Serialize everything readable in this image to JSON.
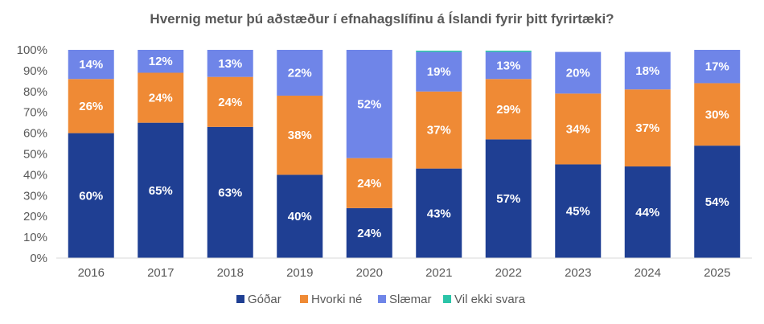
{
  "chart_data": {
    "type": "bar",
    "stacked": true,
    "title": "Hvernig metur þú aðstæður í efnahagslífinu á Íslandi fyrir þitt fyrirtæki?",
    "xlabel": "",
    "ylabel": "",
    "ylim": [
      0,
      100
    ],
    "yticks": [
      "0%",
      "10%",
      "20%",
      "30%",
      "40%",
      "50%",
      "60%",
      "70%",
      "80%",
      "90%",
      "100%"
    ],
    "categories": [
      "2016",
      "2017",
      "2018",
      "2019",
      "2020",
      "2021",
      "2022",
      "2023",
      "2024",
      "2025"
    ],
    "series": [
      {
        "name": "Góðar",
        "color": "#1f3f93",
        "values": [
          60,
          65,
          63,
          40,
          24,
          43,
          57,
          45,
          44,
          54
        ],
        "labels": [
          "60%",
          "65%",
          "63%",
          "40%",
          "24%",
          "43%",
          "57%",
          "45%",
          "44%",
          "54%"
        ]
      },
      {
        "name": "Hvorki né",
        "color": "#ef8a35",
        "values": [
          26,
          24,
          24,
          38,
          24,
          37,
          29,
          34,
          37,
          30
        ],
        "labels": [
          "26%",
          "24%",
          "24%",
          "38%",
          "24%",
          "37%",
          "29%",
          "34%",
          "37%",
          "30%"
        ]
      },
      {
        "name": "Slæmar",
        "color": "#6f85e8",
        "values": [
          14,
          12,
          13,
          22,
          52,
          19,
          13,
          20,
          18,
          17
        ],
        "labels": [
          "14%",
          "12%",
          "13%",
          "22%",
          "52%",
          "19%",
          "13%",
          "20%",
          "18%",
          "17%"
        ]
      },
      {
        "name": "Vil ekki svara",
        "color": "#2bc4a8",
        "values": [
          0.5,
          0,
          0,
          0.5,
          0,
          0.6,
          0.6,
          0,
          0,
          0
        ],
        "labels": [
          "",
          "",
          "",
          "",
          "",
          "",
          "",
          "",
          "",
          ""
        ]
      }
    ],
    "legend": "bottom",
    "grid": false
  }
}
